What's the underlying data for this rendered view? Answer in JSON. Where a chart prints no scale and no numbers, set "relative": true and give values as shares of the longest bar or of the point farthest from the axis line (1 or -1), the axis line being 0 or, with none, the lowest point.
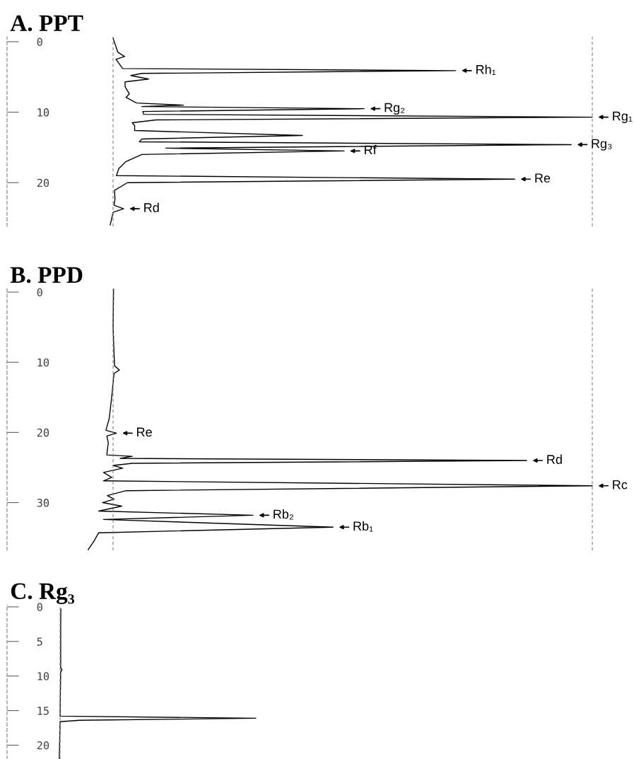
{
  "chart_data": [
    {
      "type": "line",
      "title": "A. PPT",
      "orientation": "horizontal",
      "relative": true,
      "ylim": [
        26.2,
        -0.7
      ],
      "yticks": [
        0,
        10,
        20
      ],
      "series": [
        {
          "color": "#000000",
          "x": [
            -0.5,
            1.5,
            2.1,
            2.5,
            3.8,
            4.1,
            4.5,
            4.8,
            5.3,
            5.7,
            6.4,
            7.4,
            7.9,
            8.7,
            9.0,
            9.2,
            9.5,
            9.9,
            10.3,
            10.7,
            11.1,
            11.5,
            11.9,
            12.6,
            13.3,
            13.8,
            14.2,
            14.6,
            15.1,
            15.5,
            16.0,
            17.0,
            18.0,
            19.0,
            19.5,
            20.0,
            21.1,
            22.3,
            23.2,
            23.7,
            24.2,
            26.0
          ],
          "values": [
            0,
            0.01,
            0.024,
            0.006,
            0.02,
            0.715,
            0.06,
            0.037,
            0.074,
            0.025,
            0.025,
            0.034,
            0.027,
            0.049,
            0.147,
            0.06,
            0.524,
            0.062,
            0.064,
            1.0,
            0.09,
            0.04,
            0.045,
            0.045,
            0.395,
            0.06,
            0.055,
            0.956,
            0.11,
            0.482,
            0.06,
            0.027,
            0.012,
            0.007,
            0.838,
            0.03,
            0.003,
            0.004,
            0.002,
            0.022,
            0.0,
            -0.006
          ]
        }
      ],
      "ref_lines": [
        {
          "axis": "x",
          "value": 0,
          "color": "#808080",
          "line_style": "dashed"
        },
        {
          "axis": "x",
          "value": 1,
          "color": "#808080",
          "line_style": "dashed"
        }
      ],
      "annotations": [
        {
          "text": "Rh₁",
          "x": 0.715,
          "y": 4.1
        },
        {
          "text": "Rg₂",
          "x": 0.524,
          "y": 9.5
        },
        {
          "text": "Rg₁",
          "x": 1.0,
          "y": 10.7
        },
        {
          "text": "Rg₃",
          "x": 0.956,
          "y": 14.6
        },
        {
          "text": "Rf",
          "x": 0.482,
          "y": 15.5
        },
        {
          "text": "Re",
          "x": 0.838,
          "y": 19.5
        },
        {
          "text": "Rd",
          "x": 0.022,
          "y": 23.7
        }
      ],
      "grid": false,
      "line_style": "solid"
    },
    {
      "type": "line",
      "title": "B. PPD",
      "orientation": "horizontal",
      "relative": true,
      "ylim": [
        36.8,
        -0.5
      ],
      "yticks": [
        0,
        10,
        20,
        30
      ],
      "series": [
        {
          "color": "#000000",
          "x": [
            -0.5,
            5,
            10.5,
            11.1,
            11.6,
            15,
            18,
            19.7,
            20.1,
            20.5,
            21.5,
            22.5,
            23.2,
            23.4,
            23.7,
            24.0,
            24.4,
            24.7,
            25.1,
            25.7,
            26.4,
            26.9,
            27.6,
            28.3,
            29.0,
            29.5,
            30.0,
            30.5,
            31.2,
            31.8,
            32.4,
            33.5,
            34.3,
            35.5,
            36.7
          ],
          "values": [
            0.001,
            0,
            0.003,
            0.013,
            0.002,
            -0.003,
            -0.008,
            -0.015,
            0.007,
            -0.013,
            -0.01,
            -0.012,
            -0.013,
            0.04,
            0.015,
            0.863,
            0.04,
            0.0,
            0.02,
            -0.02,
            -0.003,
            -0.02,
            1.0,
            0.027,
            -0.012,
            0.002,
            -0.022,
            0.018,
            -0.03,
            0.292,
            -0.02,
            0.459,
            -0.03,
            -0.04,
            -0.052
          ]
        }
      ],
      "ref_lines": [
        {
          "axis": "x",
          "value": 0,
          "color": "#808080",
          "line_style": "dashed"
        },
        {
          "axis": "x",
          "value": 1,
          "color": "#808080",
          "line_style": "dashed"
        }
      ],
      "annotations": [
        {
          "text": "Re",
          "x": 0.007,
          "y": 20.1
        },
        {
          "text": "Rd",
          "x": 0.863,
          "y": 24.0
        },
        {
          "text": "Rc",
          "x": 1.0,
          "y": 27.6
        },
        {
          "text": "Rb₂",
          "x": 0.292,
          "y": 31.8
        },
        {
          "text": "Rb₁",
          "x": 0.459,
          "y": 33.5
        }
      ],
      "grid": false,
      "line_style": "solid"
    },
    {
      "type": "line",
      "title": "C. Rg₃",
      "orientation": "horizontal",
      "relative": true,
      "ylim": [
        22,
        -0.3
      ],
      "yticks": [
        0,
        5,
        10,
        15,
        20
      ],
      "series": [
        {
          "color": "#000000",
          "x": [
            0.3,
            3,
            8.8,
            9.1,
            9.4,
            15.8,
            16.1,
            16.4,
            16.6,
            22
          ],
          "values": [
            0.004,
            0.003,
            0.003,
            0.01,
            0.003,
            0,
            1.0,
            0.1,
            0,
            -0.004
          ]
        }
      ],
      "ref_lines": [
        {
          "axis": "x",
          "value": 0,
          "color": "#808080",
          "line_style": "dashed"
        }
      ],
      "grid": false,
      "line_style": "solid"
    }
  ]
}
